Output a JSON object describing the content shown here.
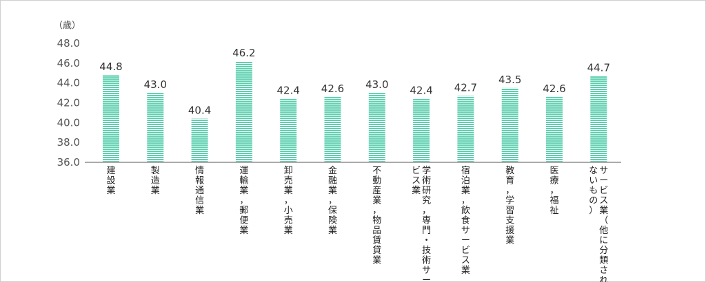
{
  "chart_data": {
    "type": "bar",
    "unit_label": "（歳）",
    "ylim": [
      36.0,
      48.0
    ],
    "yticks": [
      "36.0",
      "38.0",
      "40.0",
      "42.0",
      "44.0",
      "46.0",
      "48.0"
    ],
    "bar_color": "#5fd0b0",
    "categories": [
      "建設業",
      "製造業",
      "情報通信業",
      "運輸業，郵便業",
      "卸売業，小売業",
      "金融業，保険業",
      "不動産業，物品賃貸業",
      "学術研究，専門・技術サービス業",
      "宿泊業，飲食サービス業",
      "教育，学習支援業",
      "医療，福祉",
      "サービス業（他に分類されないもの）"
    ],
    "category_lines": [
      [
        "建設業"
      ],
      [
        "製造業"
      ],
      [
        "情報通信業"
      ],
      [
        "運輸業，郵便業"
      ],
      [
        "卸売業，小売業"
      ],
      [
        "金融業，保険業"
      ],
      [
        "不動産業，物品賃貸業"
      ],
      [
        "学術研究，専門・技術サー",
        "ビス業"
      ],
      [
        "宿泊業，飲食サービス業"
      ],
      [
        "教育，学習支援業"
      ],
      [
        "医療，福祉"
      ],
      [
        "サービス業（他に分類され",
        "ないもの）"
      ]
    ],
    "values": [
      44.8,
      43.0,
      40.4,
      46.2,
      42.4,
      42.6,
      43.0,
      42.4,
      42.7,
      43.5,
      42.6,
      44.7
    ],
    "value_labels": [
      "44.8",
      "43.0",
      "40.4",
      "46.2",
      "42.4",
      "42.6",
      "43.0",
      "42.4",
      "42.7",
      "43.5",
      "42.6",
      "44.7"
    ]
  }
}
